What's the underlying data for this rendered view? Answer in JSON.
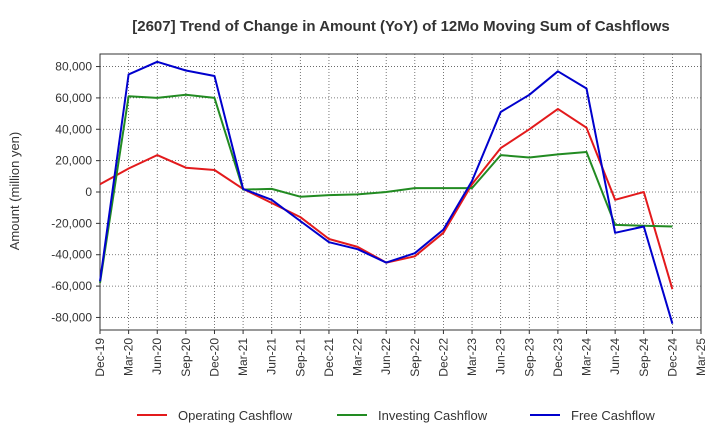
{
  "chart_data": {
    "type": "line",
    "title": "[2607]  Trend of Change in Amount (YoY) of 12Mo Moving Sum of Cashflows",
    "xlabel": "",
    "ylabel": "Amount (million yen)",
    "categories": [
      "Dec-19",
      "Mar-20",
      "Jun-20",
      "Sep-20",
      "Dec-20",
      "Mar-21",
      "Jun-21",
      "Sep-21",
      "Dec-21",
      "Mar-22",
      "Jun-22",
      "Sep-22",
      "Dec-22",
      "Mar-23",
      "Jun-23",
      "Sep-23",
      "Dec-23",
      "Mar-24",
      "Jun-24",
      "Sep-24",
      "Dec-24",
      "Mar-25"
    ],
    "ylim": [
      -88000,
      88000
    ],
    "yticks": [
      80000,
      60000,
      40000,
      20000,
      0,
      -20000,
      -40000,
      -60000,
      -80000
    ],
    "ytick_labels": [
      "80,000",
      "60,000",
      "40,000",
      "20,000",
      "0",
      "-20,000",
      "-40,000",
      "-60,000",
      "-80,000"
    ],
    "grid": true,
    "legend_position": "bottom",
    "series": [
      {
        "name": "Operating Cashflow",
        "color": "#e31a1c",
        "values": [
          5000,
          15000,
          23500,
          15500,
          14000,
          2000,
          -7000,
          -16000,
          -30000,
          -35000,
          -45000,
          -41000,
          -26000,
          5000,
          28000,
          40000,
          53000,
          41000,
          -5000,
          0,
          -62000,
          null
        ]
      },
      {
        "name": "Investing Cashflow",
        "color": "#228b22",
        "values": [
          -58000,
          61000,
          60000,
          62000,
          60000,
          1500,
          2000,
          -3000,
          -2000,
          -1500,
          0,
          2500,
          2500,
          2500,
          23500,
          22000,
          24000,
          25500,
          -21000,
          -21500,
          -22000,
          null
        ]
      },
      {
        "name": "Free Cashflow",
        "color": "#0000cd",
        "values": [
          -57000,
          75000,
          83000,
          77500,
          74000,
          2000,
          -5000,
          -18500,
          -32000,
          -36500,
          -45000,
          -39000,
          -24000,
          7000,
          51000,
          62000,
          77000,
          66000,
          -26000,
          -22000,
          -84000,
          null
        ]
      }
    ]
  }
}
